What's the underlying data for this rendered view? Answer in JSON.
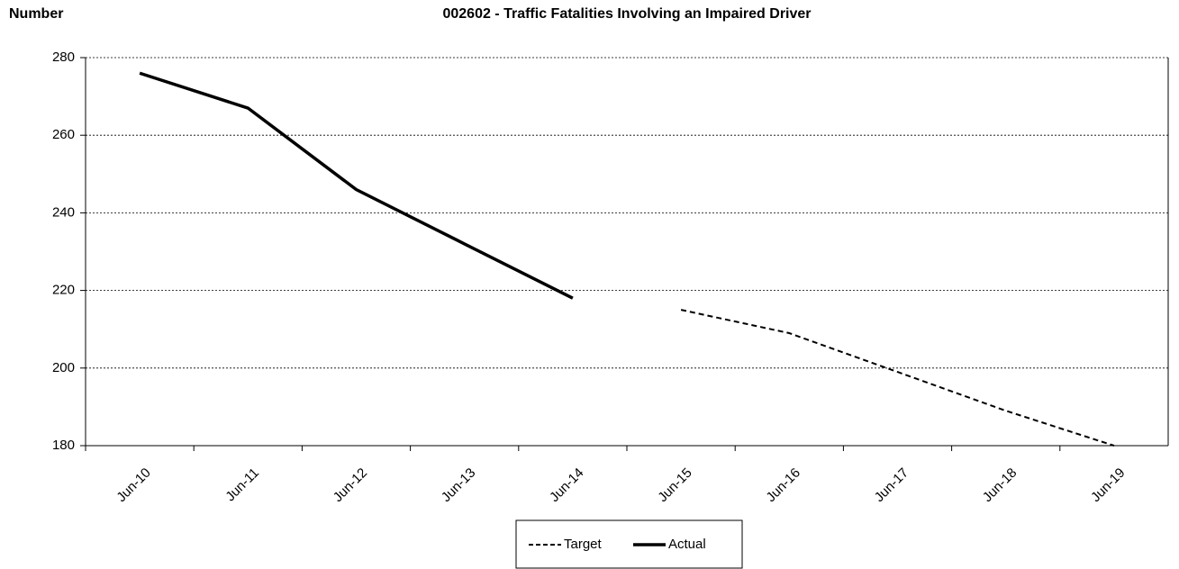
{
  "chart_data": {
    "type": "line",
    "title": "002602 - Traffic Fatalities Involving an Impaired Driver",
    "y_label": "Number",
    "categories": [
      "Jun-10",
      "Jun-11",
      "Jun-12",
      "Jun-13",
      "Jun-14",
      "Jun-15",
      "Jun-16",
      "Jun-17",
      "Jun-18",
      "Jun-19"
    ],
    "series": [
      {
        "name": "Target",
        "color": "#000000",
        "dashed": true,
        "values": [
          null,
          null,
          null,
          null,
          null,
          215,
          209,
          199,
          189,
          180
        ]
      },
      {
        "name": "Actual",
        "color": "#000000",
        "dashed": false,
        "values": [
          276,
          267,
          246,
          232,
          218,
          null,
          null,
          null,
          null,
          null
        ]
      }
    ],
    "ylim": [
      180,
      280
    ],
    "yticks": [
      180,
      200,
      220,
      240,
      260,
      280
    ],
    "grid": true,
    "legend": "bottom"
  }
}
